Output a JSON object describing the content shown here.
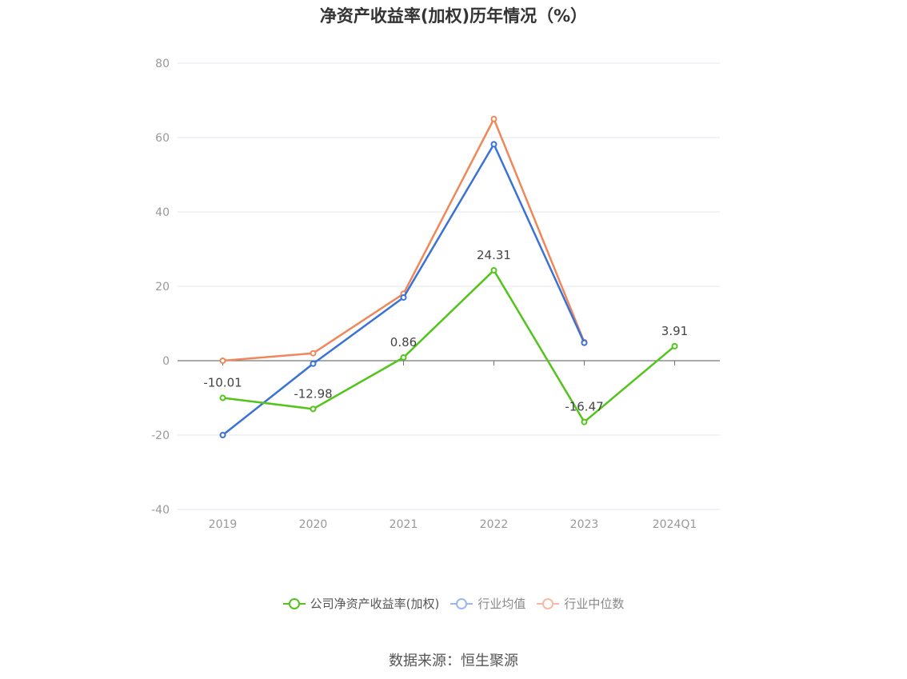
{
  "chart_data": {
    "type": "line",
    "title": "净资产收益率(加权)历年情况（%）",
    "categories": [
      "2019",
      "2020",
      "2021",
      "2022",
      "2023",
      "2024Q1"
    ],
    "ylim": [
      -40,
      80
    ],
    "yticks": [
      80,
      60,
      40,
      20,
      0,
      -20,
      -40
    ],
    "grid": true,
    "legend_position": "bottom",
    "series": [
      {
        "name": "公司净资产收益率(加权)",
        "color": "#52c41a",
        "values": [
          -10.01,
          -12.98,
          0.86,
          24.31,
          -16.47,
          3.91
        ],
        "labels": [
          "-10.01",
          "-12.98",
          "0.86",
          "24.31",
          "-16.47",
          "3.91"
        ]
      },
      {
        "name": "行业均值",
        "color": "#3a72d8",
        "values": [
          -20,
          -0.8,
          17,
          58.2,
          4.8,
          null
        ]
      },
      {
        "name": "行业中位数",
        "color": "#f0875a",
        "values": [
          0,
          2,
          18,
          65,
          5,
          null
        ]
      }
    ]
  },
  "source_text": "数据来源：恒生聚源"
}
